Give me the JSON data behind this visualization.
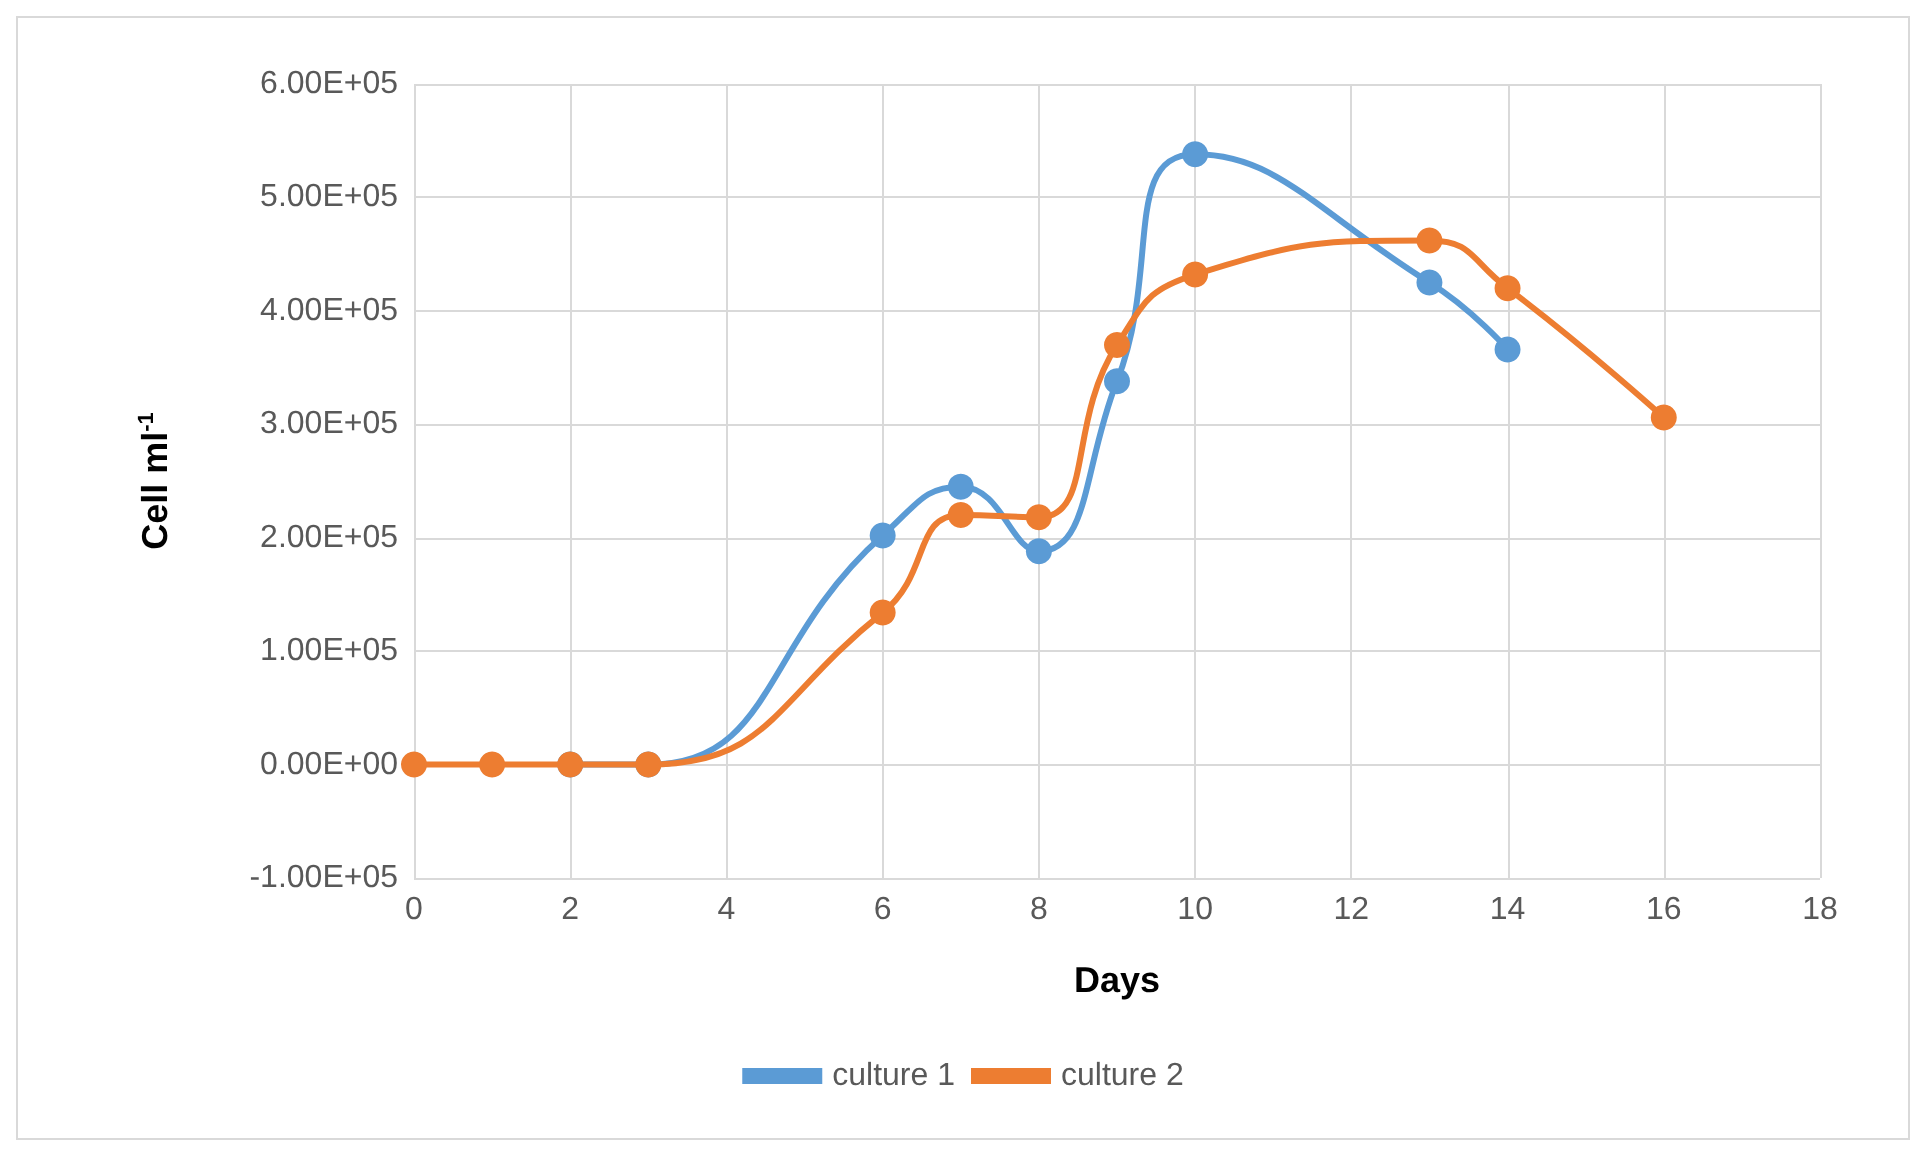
{
  "chart_data": {
    "type": "line",
    "xlabel": "Days",
    "ylabel": "Cell ml$^{-1}$",
    "xlim": [
      0,
      18
    ],
    "xticks": [
      0,
      2,
      4,
      6,
      8,
      10,
      12,
      14,
      16,
      18
    ],
    "ylim": [
      -100000,
      600000
    ],
    "yticks": [
      {
        "value": -100000,
        "label": "-1.00E+05"
      },
      {
        "value": 0,
        "label": "0.00E+00"
      },
      {
        "value": 100000,
        "label": "1.00E+05"
      },
      {
        "value": 200000,
        "label": "2.00E+05"
      },
      {
        "value": 300000,
        "label": "3.00E+05"
      },
      {
        "value": 400000,
        "label": "4.00E+05"
      },
      {
        "value": 500000,
        "label": "5.00E+05"
      },
      {
        "value": 600000,
        "label": "6.00E+05"
      }
    ],
    "series": [
      {
        "name": "culture 1",
        "color": "#5b9bd5",
        "x": [
          2,
          3,
          6,
          7,
          8,
          9,
          10,
          13,
          14
        ],
        "values": [
          0,
          0,
          202000,
          245000,
          188000,
          338000,
          538000,
          425000,
          366000
        ]
      },
      {
        "name": "culture 2",
        "color": "#ed7d31",
        "x": [
          0,
          1,
          2,
          3,
          6,
          7,
          8,
          9,
          10,
          13,
          14,
          16
        ],
        "values": [
          0,
          0,
          0,
          0,
          134000,
          220000,
          218000,
          370000,
          432000,
          462000,
          420000,
          306000
        ]
      }
    ],
    "grid": true,
    "legend": "bottom",
    "marker": "circle",
    "line_style": "solid"
  }
}
